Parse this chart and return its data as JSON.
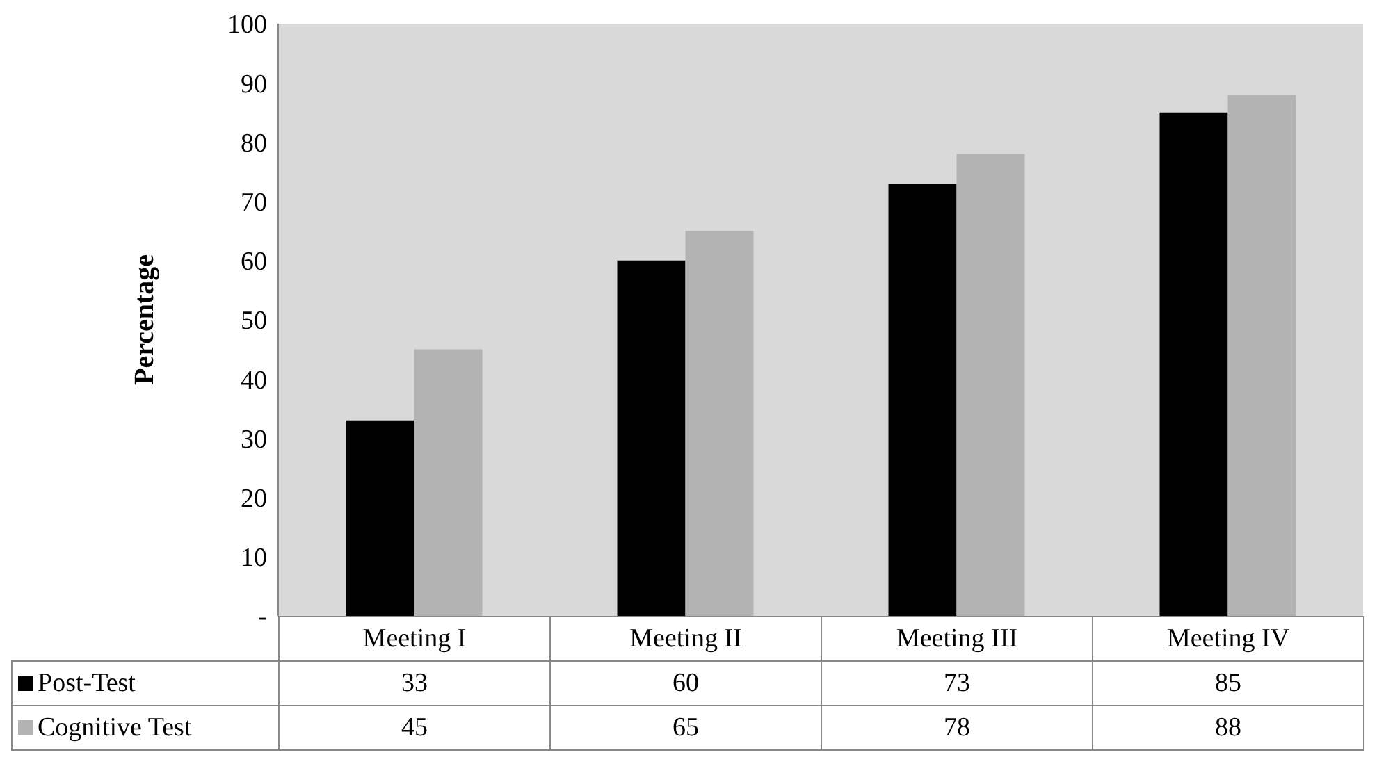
{
  "chart_data": {
    "type": "bar",
    "ylabel": "Percentage",
    "categories": [
      "Meeting I",
      "Meeting II",
      "Meeting III",
      "Meeting IV"
    ],
    "series": [
      {
        "name": "Post-Test",
        "color": "#000000",
        "values": [
          33,
          60,
          73,
          85
        ]
      },
      {
        "name": "Cognitive Test",
        "color": "#b3b3b3",
        "values": [
          45,
          65,
          78,
          88
        ]
      }
    ],
    "ylim": [
      0,
      100
    ],
    "yticks": [
      {
        "value": 0,
        "label": "-"
      },
      10,
      20,
      30,
      40,
      50,
      60,
      70,
      80,
      90,
      100
    ],
    "grid": false,
    "legend": "bottom",
    "data_labels": true
  }
}
